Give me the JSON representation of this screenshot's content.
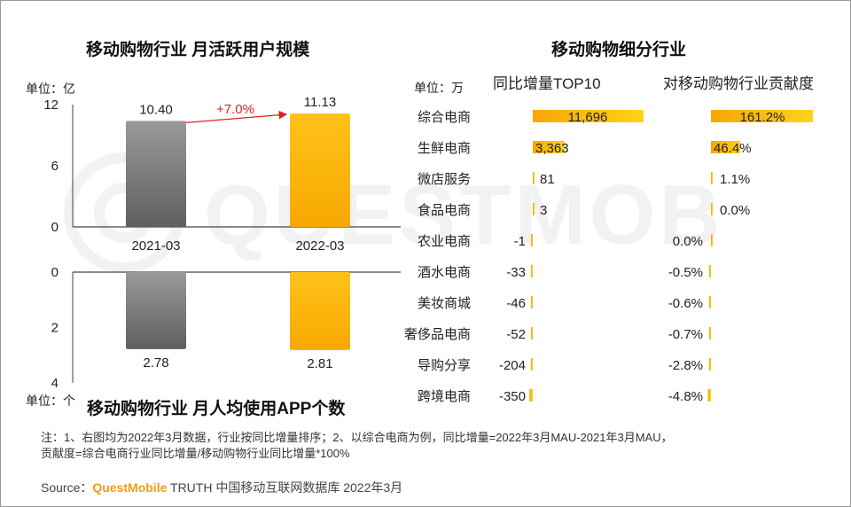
{
  "watermark": {
    "text": "QUESTMOBILE"
  },
  "left_chart": {
    "mau_title": "移动购物行业 月活跃用户规模",
    "mau_unit": "单位：亿",
    "apps_title": "移动购物行业 月人均使用APP个数",
    "apps_unit": "单位：个"
  },
  "right_chart": {
    "title": "移动购物细分行业",
    "unit": "单位：万",
    "growth_header": "同比增量TOP10",
    "contrib_header": "对移动购物行业贡献度"
  },
  "chart_data": [
    {
      "type": "bar",
      "title": "移动购物行业 月活跃用户规模",
      "ylabel": "单位：亿",
      "categories": [
        "2021-03",
        "2022-03"
      ],
      "values": [
        10.4,
        11.13
      ],
      "value_labels": [
        "10.40",
        "11.13"
      ],
      "ylim": [
        0,
        12
      ],
      "yticks": [
        "0",
        "6",
        "12"
      ],
      "annotation": "+7.0%"
    },
    {
      "type": "bar",
      "title": "移动购物行业 月人均使用APP个数",
      "ylabel": "单位：个",
      "orientation": "downward",
      "categories": [
        "2021-03",
        "2022-03"
      ],
      "values": [
        2.78,
        2.81
      ],
      "value_labels": [
        "2.78",
        "2.81"
      ],
      "ylim": [
        0,
        4
      ],
      "yticks": [
        "0",
        "2",
        "4"
      ]
    },
    {
      "type": "bar",
      "orientation": "horizontal",
      "title": "同比增量TOP10",
      "unit": "单位：万",
      "categories": [
        "综合电商",
        "生鲜电商",
        "微店服务",
        "食品电商",
        "农业电商",
        "酒水电商",
        "美妆商城",
        "奢侈品电商",
        "导购分享",
        "跨境电商"
      ],
      "values": [
        11696,
        3363,
        81,
        3,
        -1,
        -33,
        -46,
        -52,
        -204,
        -350
      ],
      "value_labels": [
        "11,696",
        "3,363",
        "81",
        "3",
        "-1",
        "-33",
        "-46",
        "-52",
        "-204",
        "-350"
      ]
    },
    {
      "type": "bar",
      "orientation": "horizontal",
      "title": "对移动购物行业贡献度",
      "categories": [
        "综合电商",
        "生鲜电商",
        "微店服务",
        "食品电商",
        "农业电商",
        "酒水电商",
        "美妆商城",
        "奢侈品电商",
        "导购分享",
        "跨境电商"
      ],
      "values": [
        161.2,
        46.4,
        1.1,
        0.0,
        0.0,
        -0.5,
        -0.6,
        -0.7,
        -2.8,
        -4.8
      ],
      "value_labels": [
        "161.2%",
        "46.4%",
        "1.1%",
        "0.0%",
        "0.0%",
        "-0.5%",
        "-0.6%",
        "-0.7%",
        "-2.8%",
        "-4.8%"
      ]
    }
  ],
  "footer": {
    "note_line1": "注：1、右图均为2022年3月数据，行业按同比增量排序；2、以综合电商为例，同比增量=2022年3月MAU-2021年3月MAU，",
    "note_line2": "贡献度=综合电商行业同比增量/移动购物行业同比增量*100%",
    "source_label": "Source：",
    "source_brand": "QuestMobile",
    "source_rest": " TRUTH 中国移动互联网数据库 2022年3月"
  },
  "colors": {
    "gray_top": "#9a9a9a",
    "gray_bottom": "#5f5f5f",
    "gold_top": "#ffc21a",
    "gold_bottom": "#f7a800",
    "arrow": "#e02020",
    "brand": "#f39c12"
  }
}
